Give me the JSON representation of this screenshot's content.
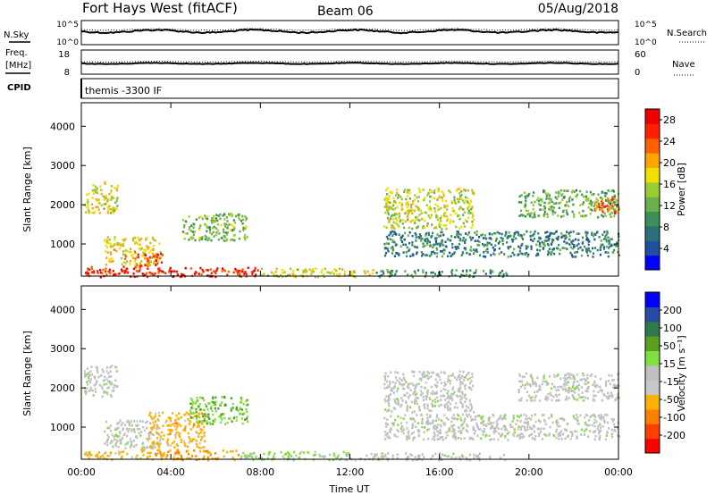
{
  "header": {
    "station": "Fort Hays West (fitACF)",
    "beam": "Beam 06",
    "date": "05/Aug/2018"
  },
  "top_panels": {
    "nsky_label": "N.Sky",
    "nsearch_label": "N.Search",
    "noise_ticks": [
      "10^5",
      "10^0"
    ],
    "freq_label_1": "Freq.",
    "freq_label_2": "[MHz]",
    "freq_ticks": [
      "18",
      "8"
    ],
    "nave_label": "Nave",
    "nave_ticks": [
      "60",
      "0"
    ],
    "cpid_label": "CPID",
    "cpid_value": "themis -3300 IF"
  },
  "time_axis": {
    "label": "Time UT",
    "ticks": [
      "00:00",
      "04:00",
      "08:00",
      "12:00",
      "16:00",
      "20:00",
      "00:00"
    ]
  },
  "colors": {
    "power_scale": [
      "#0000ff",
      "#1f4fa0",
      "#2c6f7a",
      "#3a8f5a",
      "#6ab04c",
      "#9acd32",
      "#f0e000",
      "#ffa500",
      "#ff6000",
      "#ff2000",
      "#ee0000"
    ],
    "velocity_scale": [
      "#0000ff",
      "#2a4aa8",
      "#2f7a4a",
      "#5aa020",
      "#80e040",
      "#c0c0c0",
      "#c8c8c8",
      "#ffb000",
      "#ff8000",
      "#ff4000",
      "#ff0000"
    ]
  },
  "chart_data": [
    {
      "type": "heatmap",
      "ylabel": "Slant Range [km]",
      "xlabel": "",
      "ylim": [
        180,
        4600
      ],
      "xlim": [
        0,
        24
      ],
      "yticks": [
        "1000",
        "2000",
        "3000",
        "4000"
      ],
      "colorbar_label": "Power [dB]",
      "colorbar_ticks": [
        "4",
        "8",
        "12",
        "16",
        "20",
        "24",
        "28"
      ],
      "colorbar_range": [
        0,
        30
      ],
      "regions": [
        {
          "t": [
            0.1,
            3.0
          ],
          "r": [
            180,
            450
          ],
          "v": 26
        },
        {
          "t": [
            3.0,
            8.0
          ],
          "r": [
            180,
            420
          ],
          "v": 27
        },
        {
          "t": [
            8.0,
            13.0
          ],
          "r": [
            180,
            400
          ],
          "v": 17
        },
        {
          "t": [
            13.0,
            19.0
          ],
          "r": [
            180,
            360
          ],
          "v": 10
        },
        {
          "t": [
            1.0,
            3.5
          ],
          "r": [
            480,
            1200
          ],
          "v": 18
        },
        {
          "t": [
            2.4,
            3.6
          ],
          "r": [
            450,
            780
          ],
          "v": 25
        },
        {
          "t": [
            0.1,
            1.6
          ],
          "r": [
            1800,
            2600
          ],
          "v": 17
        },
        {
          "t": [
            4.5,
            7.4
          ],
          "r": [
            1100,
            1800
          ],
          "v": 13
        },
        {
          "t": [
            13.5,
            24.0
          ],
          "r": [
            700,
            1350
          ],
          "v": 8
        },
        {
          "t": [
            13.5,
            17.5
          ],
          "r": [
            1400,
            2450
          ],
          "v": 16
        },
        {
          "t": [
            19.5,
            24.0
          ],
          "r": [
            1700,
            2400
          ],
          "v": 12
        },
        {
          "t": [
            22.8,
            24.0
          ],
          "r": [
            1800,
            2200
          ],
          "v": 23
        }
      ]
    },
    {
      "type": "heatmap",
      "ylabel": "Slant Range [km]",
      "xlabel": "Time UT",
      "ylim": [
        180,
        4600
      ],
      "xlim": [
        0,
        24
      ],
      "yticks": [
        "1000",
        "2000",
        "3000",
        "4000"
      ],
      "colorbar_label": "Velocity [m s⁻¹]",
      "colorbar_ticks": [
        "200",
        "100",
        "50",
        "15",
        "-15",
        "-50",
        "-100",
        "-200"
      ],
      "colorbar_range": [
        -250,
        250
      ],
      "regions": [
        {
          "t": [
            0.1,
            2.6
          ],
          "r": [
            180,
            400
          ],
          "v": -80
        },
        {
          "t": [
            2.6,
            7.0
          ],
          "r": [
            180,
            450
          ],
          "v": -100
        },
        {
          "t": [
            7.0,
            12.0
          ],
          "r": [
            180,
            400
          ],
          "v": 30
        },
        {
          "t": [
            12.0,
            19.0
          ],
          "r": [
            180,
            360
          ],
          "v": 0
        },
        {
          "t": [
            1.0,
            3.5
          ],
          "r": [
            480,
            1200
          ],
          "v": 0
        },
        {
          "t": [
            3.0,
            5.5
          ],
          "r": [
            500,
            1400
          ],
          "v": -90
        },
        {
          "t": [
            4.8,
            7.4
          ],
          "r": [
            1100,
            1800
          ],
          "v": 60
        },
        {
          "t": [
            0.1,
            1.6
          ],
          "r": [
            1800,
            2600
          ],
          "v": 0
        },
        {
          "t": [
            13.5,
            24.0
          ],
          "r": [
            700,
            1350
          ],
          "v": 0
        },
        {
          "t": [
            13.5,
            17.5
          ],
          "r": [
            1400,
            2450
          ],
          "v": 0
        },
        {
          "t": [
            19.5,
            24.0
          ],
          "r": [
            1700,
            2400
          ],
          "v": 0
        }
      ]
    }
  ]
}
